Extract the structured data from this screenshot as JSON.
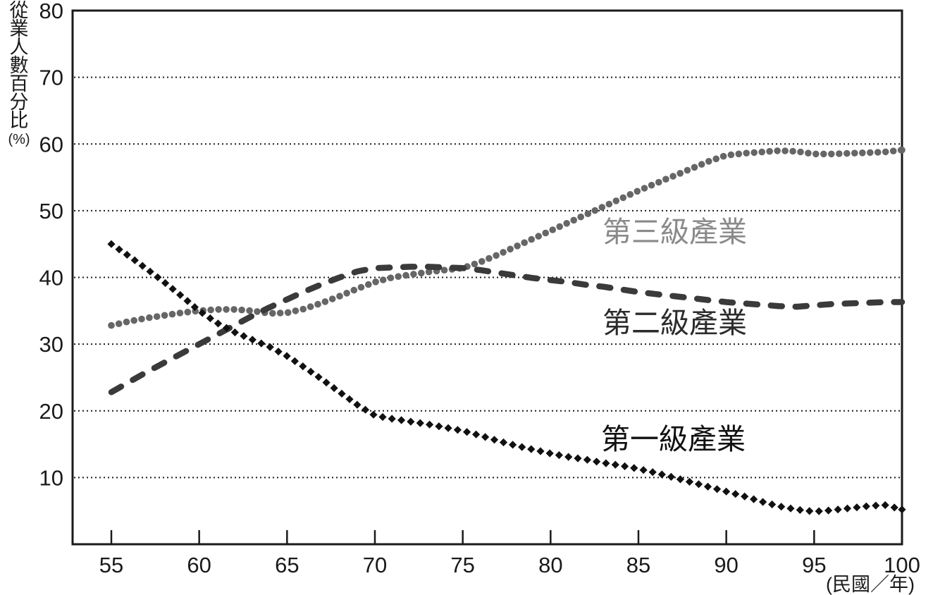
{
  "chart_data": {
    "type": "line",
    "title": "",
    "ylabel": "從業人數百分比",
    "ylabel_unit": "(%)",
    "xlabel": "(民國／年)",
    "ylim": [
      0,
      80
    ],
    "y_ticks": [
      80,
      70,
      60,
      50,
      40,
      30,
      20,
      10
    ],
    "x_ticks": [
      55,
      60,
      65,
      70,
      75,
      80,
      85,
      90,
      95,
      100
    ],
    "grid": "horizontal-dotted",
    "legend": "inline-labels",
    "years": [
      55,
      56,
      57,
      58,
      59,
      60,
      61,
      62,
      63,
      64,
      65,
      66,
      67,
      68,
      69,
      70,
      71,
      72,
      73,
      74,
      75,
      76,
      77,
      78,
      79,
      80,
      81,
      82,
      83,
      84,
      85,
      86,
      87,
      88,
      89,
      90,
      91,
      92,
      93,
      94,
      95,
      96,
      97,
      98,
      99,
      100
    ],
    "series": [
      {
        "name": "第一級產業",
        "style": "diamond-dotted",
        "color": "#111111",
        "label_color": "#111111",
        "values": [
          45.0,
          43.2,
          41.3,
          39.3,
          37.2,
          35.0,
          33.2,
          31.8,
          30.7,
          29.6,
          28.2,
          26.5,
          24.7,
          22.8,
          20.9,
          19.3,
          18.8,
          18.4,
          18.0,
          17.5,
          17.0,
          16.3,
          15.5,
          14.8,
          14.2,
          13.6,
          13.1,
          12.7,
          12.2,
          11.8,
          11.3,
          10.7,
          10.0,
          9.3,
          8.6,
          7.9,
          7.2,
          6.4,
          5.7,
          5.2,
          4.9,
          5.1,
          5.4,
          5.7,
          5.9,
          5.2
        ]
      },
      {
        "name": "第二級產業",
        "style": "dashed",
        "color": "#3a3a3a",
        "label_color": "#2b2b2b",
        "values": [
          22.8,
          24.3,
          25.8,
          27.2,
          28.6,
          30.0,
          31.4,
          32.8,
          34.2,
          35.5,
          36.7,
          37.9,
          39.0,
          40.0,
          40.9,
          41.4,
          41.5,
          41.6,
          41.6,
          41.5,
          41.4,
          41.1,
          40.7,
          40.3,
          39.9,
          39.6,
          39.3,
          38.9,
          38.6,
          38.2,
          37.8,
          37.5,
          37.2,
          36.9,
          36.6,
          36.3,
          36.1,
          35.9,
          35.7,
          35.6,
          35.8,
          36.0,
          36.1,
          36.2,
          36.3,
          36.3
        ]
      },
      {
        "name": "第三級產業",
        "style": "round-dotted",
        "color": "#666666",
        "label_color": "#8a8a8a",
        "values": [
          32.8,
          33.4,
          33.9,
          34.3,
          34.7,
          35.0,
          35.2,
          35.2,
          35.0,
          34.6,
          34.7,
          35.3,
          36.2,
          37.2,
          38.3,
          39.3,
          40.0,
          40.4,
          40.8,
          41.1,
          41.4,
          42.3,
          43.4,
          44.6,
          45.8,
          47.0,
          48.2,
          49.4,
          50.6,
          51.8,
          53.0,
          54.1,
          55.2,
          56.3,
          57.4,
          58.3,
          58.6,
          58.8,
          59.0,
          58.9,
          58.5,
          58.5,
          58.6,
          58.7,
          58.8,
          59.1
        ]
      }
    ]
  }
}
